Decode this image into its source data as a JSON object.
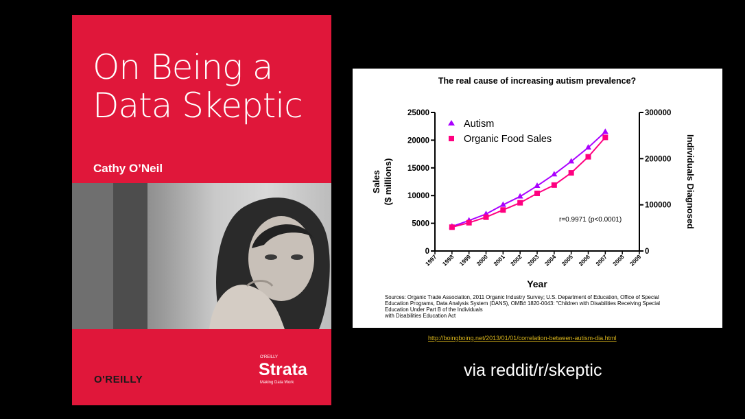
{
  "book": {
    "title": "On Being a\nData Skeptic",
    "author": "Cathy O’Neil",
    "publisher": "O'REILLY",
    "imprint_small": "O'REILLY",
    "imprint": "Strata",
    "imprint_tagline": "Making Data Work",
    "colors": {
      "cover": "#e0173a",
      "text": "#ffffff"
    }
  },
  "chart_data": {
    "type": "line",
    "title": "The real cause of increasing autism prevalence?",
    "xlabel": "Year",
    "ylabel": "Sales\n($ millions)",
    "y2label": "Individuals Diagnosed",
    "x": [
      1998,
      1999,
      2000,
      2001,
      2002,
      2003,
      2004,
      2005,
      2006,
      2007
    ],
    "xlim": [
      1997,
      2009
    ],
    "xticks": [
      "1997",
      "1998",
      "1999",
      "2000",
      "2001",
      "2002",
      "2003",
      "2004",
      "2005",
      "2006",
      "2007",
      "2008",
      "2009"
    ],
    "ylim": [
      0,
      25000
    ],
    "yticks": [
      "0",
      "5000",
      "10000",
      "15000",
      "20000",
      "25000"
    ],
    "y2lim": [
      0,
      300000
    ],
    "y2ticks": [
      "0",
      "100000",
      "200000",
      "300000"
    ],
    "series": [
      {
        "name": "Autism",
        "axis": "right",
        "color": "#aa00ff",
        "marker": "triangle",
        "values": [
          53000,
          66000,
          80000,
          100000,
          118000,
          141000,
          166000,
          194000,
          224000,
          258000
        ]
      },
      {
        "name": "Organic Food Sales",
        "axis": "left",
        "color": "#ff0080",
        "marker": "square",
        "values": [
          4300,
          5100,
          6100,
          7400,
          8700,
          10400,
          11900,
          14100,
          17000,
          20500
        ]
      }
    ],
    "legend": "top-left",
    "annotation": "r=0.9971 (p<0.0001)",
    "sources": [
      "Sources: Organic Trade Association,  2011 Organic Industry Survey; U.S. Department of Education, Office of Special",
      "Education Programs, Data Analysis System (DANS), OMB# 1820-0043: \"Children with Disabilities Receiving Special",
      "Education Under Part B of the Individuals",
      "with Disabilities Education Act"
    ]
  },
  "link": "http://boingboing.net/2013/01/01/correlation-between-autism-dia.html",
  "via": "via reddit/r/skeptic"
}
